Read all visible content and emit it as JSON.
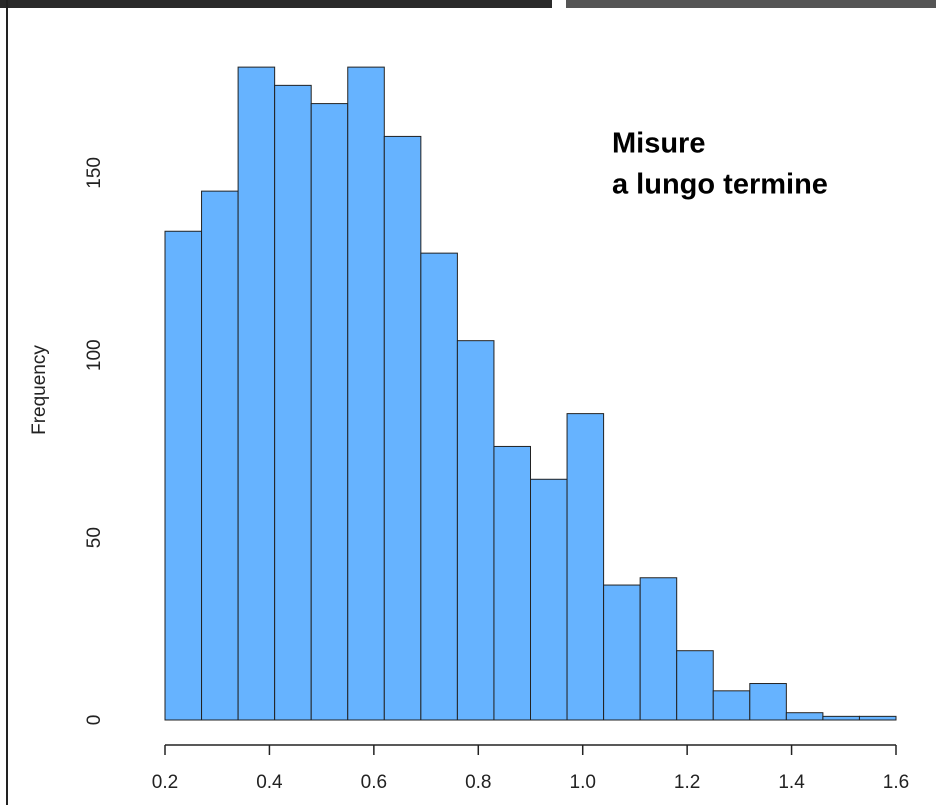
{
  "chart_data": {
    "type": "histogram",
    "annotation": [
      "Misure",
      "a lungo termine"
    ],
    "ylabel": "Frequency",
    "bins": [
      0.2,
      0.27,
      0.34,
      0.41,
      0.48,
      0.55,
      0.62,
      0.69,
      0.76,
      0.83,
      0.9,
      0.97,
      1.04,
      1.11,
      1.18,
      1.25,
      1.32,
      1.39,
      1.46,
      1.53,
      1.6
    ],
    "values": [
      134,
      145,
      179,
      174,
      169,
      179,
      160,
      128,
      104,
      75,
      66,
      84,
      37,
      39,
      19,
      8,
      10,
      2,
      1,
      1
    ],
    "color": "#66b3ff",
    "xlim": [
      0.2,
      1.6
    ],
    "xticks": [
      0.2,
      0.4,
      0.6,
      0.8,
      {
        "value": 1,
        "label": "1.0"
      },
      1.2,
      1.4,
      1.6
    ],
    "ylim": [
      0,
      190
    ],
    "yticks": [
      0,
      50,
      100,
      150
    ]
  }
}
